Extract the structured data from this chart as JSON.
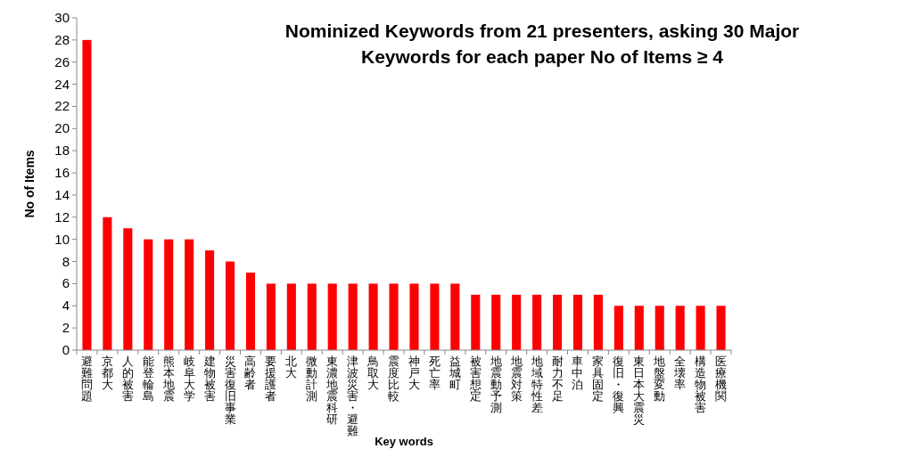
{
  "chart_data": {
    "type": "bar",
    "title": "Nominized Keywords from 21 presenters, asking 30 Major Keywords for each paper No of Items ≥ 4",
    "xlabel": "Key words",
    "ylabel": "No of Items",
    "categories": [
      "避難問題",
      "京都大",
      "人的被害",
      "能登輪島",
      "熊本地震",
      "岐阜大学",
      "建物被害",
      "災害復旧事業",
      "高齢者",
      "要援護者",
      "北大",
      "微動計測",
      "東濃地震科研",
      "津波災害・避難",
      "鳥取大",
      "震度比較",
      "神戸大",
      "死亡率",
      "益城町",
      "被害想定",
      "地震動予測",
      "地震対策",
      "地域特性差",
      "耐力不足",
      "車中泊",
      "家具固定",
      "復旧・復興",
      "東日本大震災",
      "地盤変動",
      "全壊率",
      "構造物被害",
      "医療機関"
    ],
    "series": [
      {
        "color": "#ff0000",
        "values": [
          28,
          12,
          11,
          10,
          10,
          10,
          9,
          8,
          7,
          6,
          6,
          6,
          6,
          6,
          6,
          6,
          6,
          6,
          6,
          5,
          5,
          5,
          5,
          5,
          5,
          5,
          4,
          4,
          4,
          4,
          4,
          4
        ]
      }
    ],
    "ylim": [
      0,
      30
    ],
    "yticks": [
      0,
      2,
      4,
      6,
      8,
      10,
      12,
      14,
      16,
      18,
      20,
      22,
      24,
      26,
      28,
      30
    ]
  }
}
